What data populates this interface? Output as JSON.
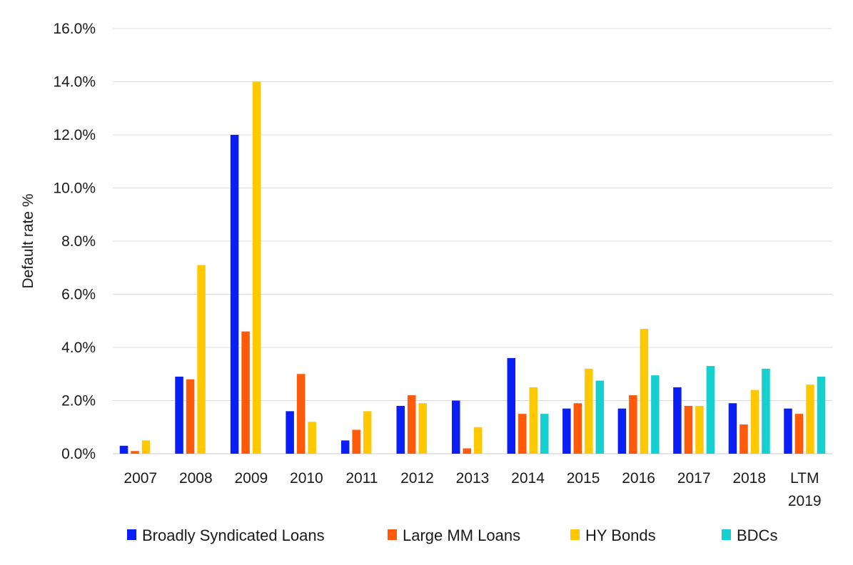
{
  "chart_data": {
    "type": "bar",
    "ylabel": "Default rate %",
    "xlabel": "",
    "ylim": [
      0,
      16
    ],
    "yticks": [
      "0.0%",
      "2.0%",
      "4.0%",
      "6.0%",
      "8.0%",
      "10.0%",
      "12.0%",
      "14.0%",
      "16.0%"
    ],
    "grid": true,
    "legend_position": "bottom",
    "categories": [
      [
        "2007"
      ],
      [
        "2008"
      ],
      [
        "2009"
      ],
      [
        "2010"
      ],
      [
        "2011"
      ],
      [
        "2012"
      ],
      [
        "2013"
      ],
      [
        "2014"
      ],
      [
        "2015"
      ],
      [
        "2016"
      ],
      [
        "2017"
      ],
      [
        "2018"
      ],
      [
        "LTM",
        "2019"
      ]
    ],
    "series": [
      {
        "name": "Broadly Syndicated Loans",
        "color": "#0a1ff5",
        "values": [
          0.3,
          2.9,
          12.0,
          1.6,
          0.5,
          1.8,
          2.0,
          3.6,
          1.7,
          1.7,
          2.5,
          1.9,
          1.7
        ]
      },
      {
        "name": "Large MM Loans",
        "color": "#ff5a0a",
        "values": [
          0.1,
          2.8,
          4.6,
          3.0,
          0.9,
          2.2,
          0.2,
          1.5,
          1.9,
          2.2,
          1.8,
          1.1,
          1.5
        ]
      },
      {
        "name": "HY Bonds",
        "color": "#ffc800",
        "values": [
          0.5,
          7.1,
          14.0,
          1.2,
          1.6,
          1.9,
          1.0,
          2.5,
          3.2,
          4.7,
          1.8,
          2.4,
          2.6
        ]
      },
      {
        "name": "BDCs",
        "color": "#16cfcf",
        "values": [
          null,
          null,
          null,
          null,
          null,
          null,
          null,
          1.5,
          2.75,
          2.95,
          3.3,
          3.2,
          2.9
        ]
      }
    ]
  }
}
